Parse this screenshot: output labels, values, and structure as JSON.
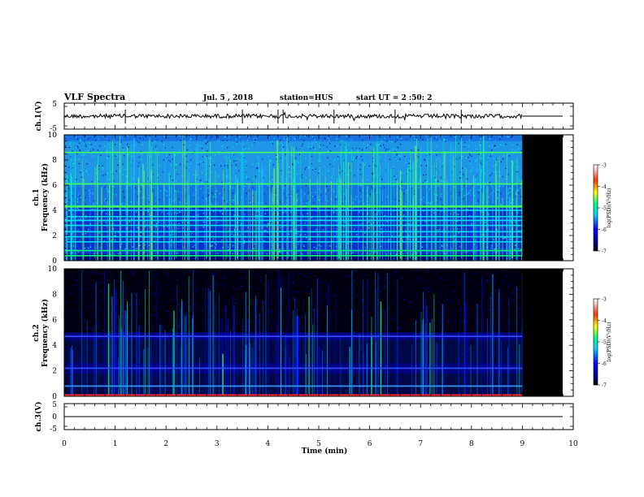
{
  "chart_data": {
    "type": "heatmap",
    "title": "VLF Spectra",
    "date": "Jul. 5 , 2018",
    "station": "station=HUS",
    "start": "start UT =  2 :50: 2",
    "xlabel": "Time (min)",
    "xlim": [
      0,
      10
    ],
    "xticks": [
      "0",
      "1",
      "2",
      "3",
      "4",
      "5",
      "6",
      "7",
      "8",
      "9",
      "10"
    ],
    "data_end_min": 9.0,
    "panels": [
      {
        "id": "ch1-wave",
        "type": "line",
        "ylabel": "ch.1(V)",
        "ylim": [
          -5,
          5
        ],
        "yticks": [
          "5",
          "-5"
        ],
        "description_level": 0
      },
      {
        "id": "ch1-spec",
        "type": "heatmap",
        "ylabel_top": "ch.1",
        "ylabel": "Frequency (kHz)",
        "ylim": [
          0,
          10
        ],
        "yticks": [
          "0",
          "2",
          "4",
          "6",
          "8",
          "10"
        ],
        "colorbar_label": "log(PSD)(V²/Hz)",
        "colorbar_range": [
          -7,
          -3
        ],
        "colorbar_ticks": [
          "-3",
          "-4",
          "-5",
          "-6",
          "-7"
        ],
        "bands_khz": [
          0.4,
          0.8,
          1.5,
          1.9,
          2.3,
          2.8,
          3.2,
          3.5,
          4.0,
          4.3,
          6.1,
          8.6
        ]
      },
      {
        "id": "ch2-spec",
        "type": "heatmap",
        "ylabel_top": "ch.2",
        "ylabel": "Frequency (kHz)",
        "ylim": [
          0,
          10
        ],
        "yticks": [
          "0",
          "2",
          "4",
          "6",
          "8",
          "10"
        ],
        "colorbar_label": "log(PSD)(V²/Hz)",
        "colorbar_range": [
          -7,
          -3
        ],
        "colorbar_ticks": [
          "-3",
          "-4",
          "-5",
          "-6",
          "-7"
        ],
        "bands_khz": [
          0.8,
          2.2,
          4.7
        ]
      },
      {
        "id": "ch3-wave",
        "type": "line",
        "ylabel": "ch.3(V)",
        "ylim": [
          -5,
          5
        ],
        "yticks": [
          "5",
          "0",
          "-5"
        ]
      }
    ]
  }
}
